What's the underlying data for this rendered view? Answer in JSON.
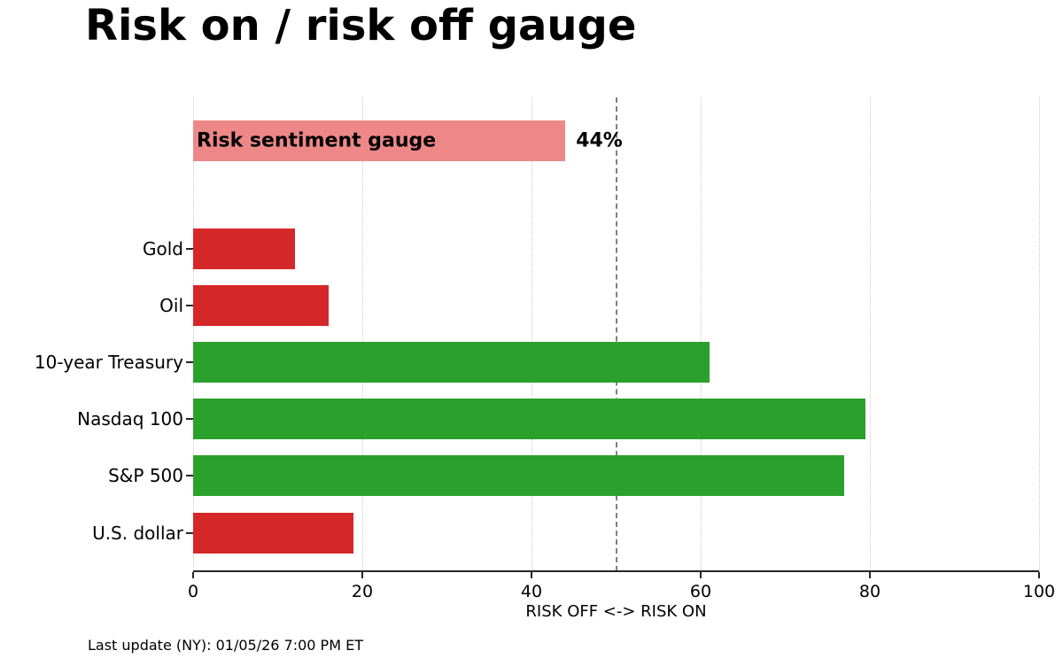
{
  "title": "Risk on / risk off gauge",
  "footer": "Last update (NY): 01/05/26 7:00 PM ET",
  "chart_data": {
    "type": "bar",
    "orientation": "horizontal",
    "title": "Risk on / risk off gauge",
    "xlabel": "RISK OFF <-> RISK ON",
    "xlim": [
      0,
      100
    ],
    "xticks": [
      0,
      20,
      40,
      60,
      80,
      100
    ],
    "grid": "dotted vertical gridlines at each x tick",
    "midline": 50,
    "gauge": {
      "label": "Risk sentiment gauge",
      "value": 44,
      "value_label": "44%",
      "color": "#ee8888"
    },
    "categories": [
      "Gold",
      "Oil",
      "10-year Treasury",
      "Nasdaq 100",
      "S&P 500",
      "U.S. dollar"
    ],
    "values": [
      12,
      16,
      61,
      79.5,
      77,
      19
    ],
    "bar_colors": [
      "#d62728",
      "#d62728",
      "#2ca02c",
      "#2ca02c",
      "#2ca02c",
      "#d62728"
    ],
    "colors": {
      "risk_on_green": "#2ca02c",
      "risk_off_red": "#d62728",
      "gauge_pink": "#ee8888",
      "gridline": "#c9c9c9",
      "midline_gray": "#7f7f7f",
      "axis": "#262626"
    }
  }
}
